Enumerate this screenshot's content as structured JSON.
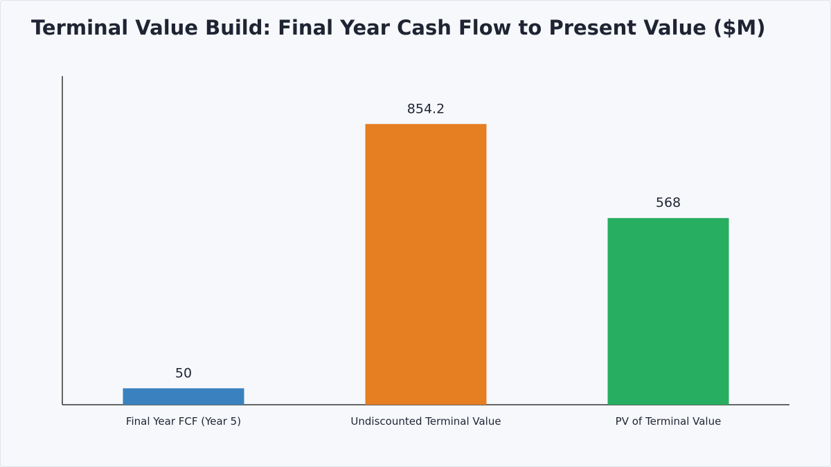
{
  "chart_data": {
    "type": "bar",
    "title": "Terminal Value Build: Final Year Cash Flow to Present Value ($M)",
    "categories": [
      "Final Year FCF (Year 5)",
      "Undiscounted Terminal Value",
      "PV of Terminal Value"
    ],
    "values": [
      50,
      854.2,
      568
    ],
    "value_labels": [
      "50",
      "854.2",
      "568"
    ],
    "colors": [
      "#3a82bf",
      "#e67e22",
      "#27ae60"
    ],
    "ylim": [
      0,
      1000
    ],
    "grid": false,
    "legend": "none"
  }
}
